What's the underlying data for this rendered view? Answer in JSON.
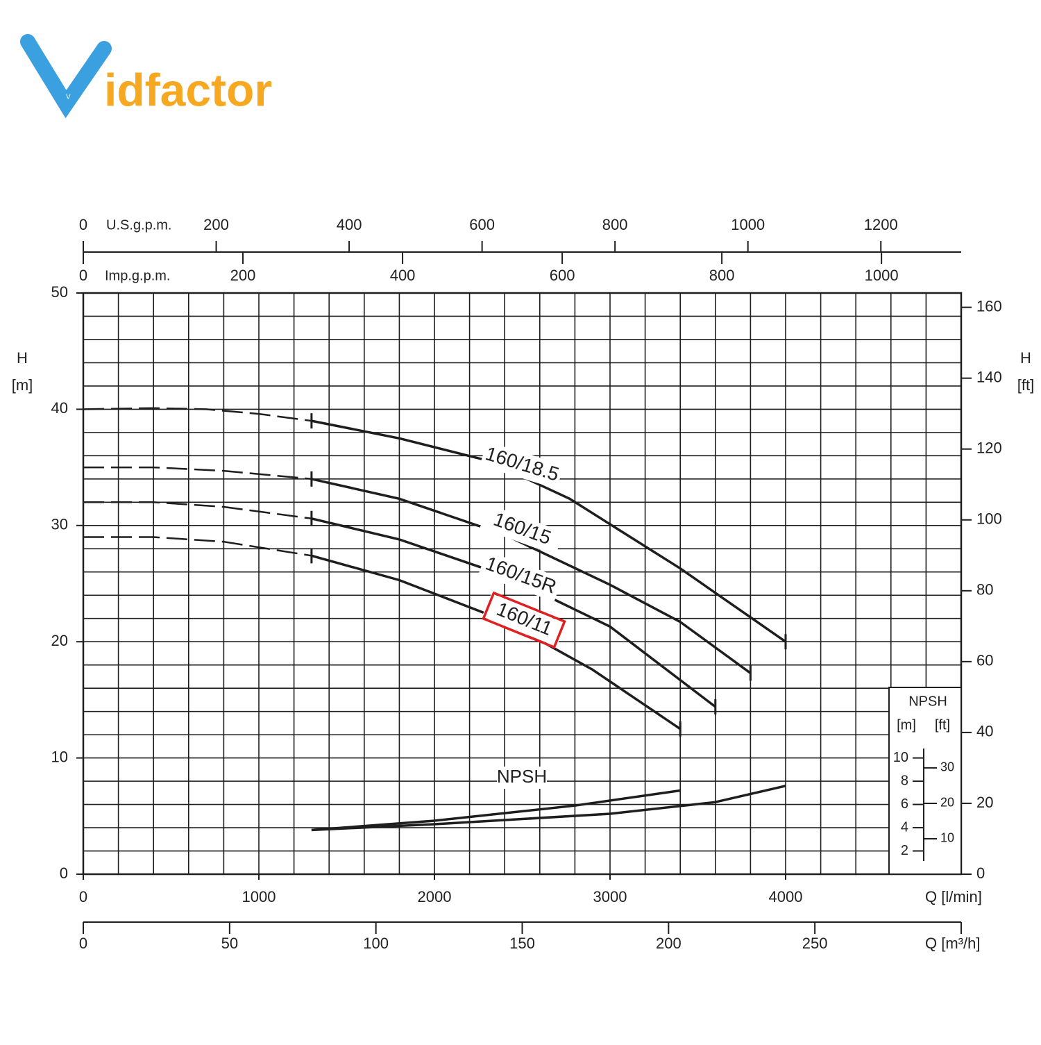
{
  "logo": {
    "mark": "V",
    "text": "idfactor"
  },
  "chart_data": {
    "type": "line",
    "xlabel": "Q [l/min]",
    "ylabel": {
      "name": "H",
      "unit": "[m]"
    },
    "y2label": {
      "name": "H",
      "unit": "[ft]"
    },
    "xlim": [
      0,
      5000
    ],
    "xticks": [
      0,
      1000,
      2000,
      3000,
      4000
    ],
    "ylim": [
      0,
      50
    ],
    "yticks": [
      0,
      10,
      20,
      30,
      40,
      50
    ],
    "y2lim": [
      0,
      164.04
    ],
    "y2ticks": [
      0,
      20,
      40,
      60,
      80,
      100,
      120,
      140,
      160
    ],
    "xgrid": [
      0,
      200,
      400,
      600,
      800,
      1000,
      1200,
      1400,
      1600,
      1800,
      2000,
      2200,
      2400,
      2600,
      2800,
      3000,
      3200,
      3400,
      3600,
      3800,
      4000,
      4200,
      4400,
      4600,
      4800,
      5000
    ],
    "ygrid": [
      0,
      2,
      4,
      6,
      8,
      10,
      12,
      14,
      16,
      18,
      20,
      22,
      24,
      26,
      28,
      30,
      32,
      34,
      36,
      38,
      40,
      42,
      44,
      46,
      48,
      50
    ],
    "grid": true,
    "color": "#1e1e1e",
    "x2": {
      "label": "Q [m³/h]",
      "lim": [
        0,
        300
      ],
      "ticks": [
        0,
        50,
        100,
        150,
        200,
        250
      ]
    },
    "top_axes": [
      {
        "label": "U.S.g.p.m.",
        "lim": [
          0,
          1320.86
        ],
        "ticks": [
          0,
          200,
          400,
          600,
          800,
          1000,
          1200
        ]
      },
      {
        "label": "Imp.g.p.m.",
        "lim": [
          0,
          1099.85
        ],
        "ticks": [
          0,
          200,
          400,
          600,
          800,
          1000
        ]
      }
    ],
    "series": [
      {
        "name": "160/18.5",
        "x": [
          1300,
          1800,
          2300,
          2770,
          3400,
          4000
        ],
        "values": [
          39,
          37.5,
          35.6,
          32.3,
          26.3,
          20
        ],
        "extrapolated": {
          "x": [
            0,
            400,
            700,
            1000,
            1300
          ],
          "values": [
            40,
            40.1,
            40,
            39.6,
            39
          ]
        }
      },
      {
        "name": "160/15",
        "x": [
          1300,
          1800,
          2400,
          3000,
          3400,
          3800
        ],
        "values": [
          34,
          32.3,
          29.2,
          24.9,
          21.7,
          17.3
        ],
        "extrapolated": {
          "x": [
            0,
            400,
            800,
            1300
          ],
          "values": [
            35,
            35,
            34.7,
            34
          ]
        }
      },
      {
        "name": "160/15R",
        "x": [
          1300,
          1800,
          2400,
          3000,
          3600
        ],
        "values": [
          30.6,
          28.8,
          25.7,
          21.3,
          14.4
        ],
        "extrapolated": {
          "x": [
            0,
            400,
            800,
            1300
          ],
          "values": [
            32,
            32,
            31.6,
            30.6
          ]
        }
      },
      {
        "name": "160/11",
        "x": [
          1300,
          1800,
          2400,
          2900,
          3400
        ],
        "values": [
          27.4,
          25.3,
          21.8,
          17.6,
          12.5
        ],
        "extrapolated": {
          "x": [
            0,
            400,
            800,
            1300
          ],
          "values": [
            29,
            29,
            28.6,
            27.4
          ]
        }
      }
    ],
    "highlight": "160/11",
    "npsh": {
      "label": "NPSH",
      "series": [
        {
          "x": [
            1300,
            2000,
            2800,
            3400
          ],
          "values": [
            3.8,
            4.6,
            5.9,
            7.2
          ]
        },
        {
          "x": [
            1300,
            2000,
            3000,
            3600,
            4000
          ],
          "values": [
            3.8,
            4.3,
            5.2,
            6.2,
            7.6
          ]
        }
      ],
      "inset": {
        "title": "NPSH",
        "m_unit": "[m]",
        "ft_unit": "[ft]",
        "m_ticks": [
          2,
          4,
          6,
          8,
          10
        ],
        "ft_ticks": [
          10,
          20,
          30
        ]
      }
    }
  }
}
